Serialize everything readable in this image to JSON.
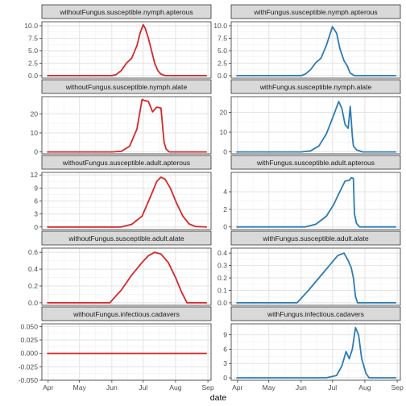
{
  "chart_data": [
    {
      "type": "line",
      "title": "withoutFungus.susceptible.nymph.apterous",
      "color": "#d62728",
      "ylim": [
        -0.5,
        10.8
      ],
      "yticks": [
        0.0,
        2.5,
        5.0,
        7.5,
        10.0
      ],
      "ytick_labels": [
        "0.0",
        "2.5",
        "5.0",
        "7.5",
        "10.0"
      ],
      "x": [
        "2024-03-31",
        "2024-06-01",
        "2024-06-05",
        "2024-06-10",
        "2024-06-15",
        "2024-06-20",
        "2024-06-25",
        "2024-06-28",
        "2024-07-01",
        "2024-07-03",
        "2024-07-06",
        "2024-07-09",
        "2024-07-12",
        "2024-07-15",
        "2024-07-18",
        "2024-07-22",
        "2024-08-01",
        "2024-08-31"
      ],
      "y": [
        0,
        0,
        0.2,
        1,
        2.5,
        3.5,
        6,
        8.5,
        10.2,
        9.5,
        7.5,
        5,
        2.5,
        1,
        0.3,
        0,
        0,
        0
      ]
    },
    {
      "type": "line",
      "title": "withFungus.susceptible.nymph.apterous",
      "color": "#2c7bb6",
      "ylim": [
        -0.5,
        10.8
      ],
      "yticks": [
        0.0,
        2.5,
        5.0,
        7.5,
        10.0
      ],
      "ytick_labels": [
        "0.0",
        "2.5",
        "5.0",
        "7.5",
        "10.0"
      ],
      "x": [
        "2024-03-31",
        "2024-06-01",
        "2024-06-05",
        "2024-06-10",
        "2024-06-15",
        "2024-06-20",
        "2024-06-25",
        "2024-07-01",
        "2024-07-05",
        "2024-07-08",
        "2024-07-12",
        "2024-07-15",
        "2024-07-18",
        "2024-07-22",
        "2024-08-31"
      ],
      "y": [
        0,
        0,
        0.3,
        1.2,
        2.6,
        3.5,
        6,
        9.8,
        8.5,
        5.5,
        3,
        2,
        0.5,
        0,
        0
      ]
    },
    {
      "type": "line",
      "title": "withoutFungus.susceptible.nymph.alate",
      "color": "#d62728",
      "ylim": [
        -1,
        29
      ],
      "yticks": [
        0,
        10,
        20
      ],
      "ytick_labels": [
        "0",
        "10",
        "20"
      ],
      "x": [
        "2024-03-31",
        "2024-06-01",
        "2024-06-10",
        "2024-06-18",
        "2024-06-25",
        "2024-06-30",
        "2024-07-02",
        "2024-07-06",
        "2024-07-10",
        "2024-07-14",
        "2024-07-18",
        "2024-07-21",
        "2024-07-23",
        "2024-07-26",
        "2024-08-05",
        "2024-08-31"
      ],
      "y": [
        0,
        0,
        0.3,
        3,
        12,
        27.5,
        27,
        26.5,
        21,
        23.5,
        23,
        5,
        1.5,
        0,
        0,
        0
      ]
    },
    {
      "type": "line",
      "title": "withFungus.susceptible.nymph.alate",
      "color": "#2c7bb6",
      "ylim": [
        -1,
        28
      ],
      "yticks": [
        0,
        10,
        20
      ],
      "ytick_labels": [
        "0",
        "10",
        "20"
      ],
      "x": [
        "2024-03-31",
        "2024-06-01",
        "2024-06-10",
        "2024-06-18",
        "2024-06-25",
        "2024-07-01",
        "2024-07-07",
        "2024-07-10",
        "2024-07-13",
        "2024-07-16",
        "2024-07-18",
        "2024-07-20",
        "2024-07-21",
        "2024-07-24",
        "2024-07-30",
        "2024-08-31"
      ],
      "y": [
        0,
        0,
        0.5,
        3,
        9,
        17,
        25.5,
        22,
        14,
        12,
        23,
        8,
        3,
        1,
        0,
        0
      ]
    },
    {
      "type": "line",
      "title": "withoutFungus.susceptible.adult.apterous",
      "color": "#d62728",
      "ylim": [
        -0.6,
        12.6
      ],
      "yticks": [
        0,
        3,
        6,
        9,
        12
      ],
      "ytick_labels": [
        "0",
        "3",
        "6",
        "9",
        "12"
      ],
      "x": [
        "2024-03-31",
        "2024-06-10",
        "2024-06-20",
        "2024-06-30",
        "2024-07-08",
        "2024-07-14",
        "2024-07-18",
        "2024-07-22",
        "2024-07-27",
        "2024-08-02",
        "2024-08-08",
        "2024-08-14",
        "2024-08-20",
        "2024-08-31"
      ],
      "y": [
        0,
        0,
        0.6,
        2.5,
        7,
        10.5,
        11.5,
        11,
        9,
        5.5,
        2.5,
        0.7,
        0.1,
        0
      ]
    },
    {
      "type": "line",
      "title": "withFungus.susceptible.adult.apterous",
      "color": "#2c7bb6",
      "ylim": [
        -0.3,
        6.2
      ],
      "yticks": [
        0,
        2,
        4
      ],
      "ytick_labels": [
        "0",
        "2",
        "4"
      ],
      "x": [
        "2024-03-31",
        "2024-06-05",
        "2024-06-15",
        "2024-06-25",
        "2024-07-02",
        "2024-07-08",
        "2024-07-13",
        "2024-07-17",
        "2024-07-19",
        "2024-07-21",
        "2024-07-22",
        "2024-07-24",
        "2024-07-27",
        "2024-08-31"
      ],
      "y": [
        0,
        0,
        0.3,
        1.2,
        2.5,
        4,
        5.2,
        5.3,
        5.6,
        5.5,
        1.5,
        0.4,
        0,
        0
      ]
    },
    {
      "type": "line",
      "title": "withoutFungus.susceptible.adult.alate",
      "color": "#d62728",
      "ylim": [
        -0.03,
        0.65
      ],
      "yticks": [
        0.0,
        0.2,
        0.4,
        0.6
      ],
      "ytick_labels": [
        "0.0",
        "0.2",
        "0.4",
        "0.6"
      ],
      "x": [
        "2024-03-31",
        "2024-05-30",
        "2024-06-10",
        "2024-06-20",
        "2024-06-30",
        "2024-07-06",
        "2024-07-12",
        "2024-07-18",
        "2024-07-25",
        "2024-08-01",
        "2024-08-07",
        "2024-08-12",
        "2024-08-31"
      ],
      "y": [
        0,
        0,
        0.15,
        0.33,
        0.48,
        0.56,
        0.6,
        0.58,
        0.48,
        0.3,
        0.12,
        0,
        0
      ]
    },
    {
      "type": "line",
      "title": "withFungus.susceptible.adult.alate",
      "color": "#2c7bb6",
      "ylim": [
        -0.02,
        0.44
      ],
      "yticks": [
        0.0,
        0.1,
        0.2,
        0.3,
        0.4
      ],
      "ytick_labels": [
        "0.0",
        "0.1",
        "0.2",
        "0.3",
        "0.4"
      ],
      "x": [
        "2024-03-31",
        "2024-05-28",
        "2024-06-08",
        "2024-06-18",
        "2024-06-28",
        "2024-07-06",
        "2024-07-12",
        "2024-07-16",
        "2024-07-19",
        "2024-07-21",
        "2024-07-23",
        "2024-07-25",
        "2024-08-31"
      ],
      "y": [
        0,
        0,
        0.1,
        0.2,
        0.3,
        0.38,
        0.4,
        0.34,
        0.28,
        0.2,
        0.05,
        0,
        0
      ]
    },
    {
      "type": "line",
      "title": "withoutFungus.infectious.cadavers",
      "color": "#d62728",
      "ylim": [
        -0.05,
        0.055
      ],
      "yticks": [
        -0.05,
        -0.025,
        0.0,
        0.025,
        0.05
      ],
      "ytick_labels": [
        "-0.050",
        "-0.025",
        "0.000",
        "0.025",
        "0.050"
      ],
      "x": [
        "2024-03-31",
        "2024-08-31"
      ],
      "y": [
        0,
        0
      ]
    },
    {
      "type": "line",
      "title": "withFungus.infectious.cadavers",
      "color": "#2c7bb6",
      "ylim": [
        -0.5,
        11.3
      ],
      "yticks": [
        0,
        3,
        6,
        9
      ],
      "ytick_labels": [
        "0",
        "3",
        "6",
        "9"
      ],
      "x": [
        "2024-03-31",
        "2024-06-25",
        "2024-07-05",
        "2024-07-10",
        "2024-07-14",
        "2024-07-17",
        "2024-07-20",
        "2024-07-23",
        "2024-07-26",
        "2024-07-29",
        "2024-08-02",
        "2024-08-05",
        "2024-08-31"
      ],
      "y": [
        0,
        0,
        0.5,
        2.5,
        5.5,
        4,
        6,
        10.5,
        9,
        4,
        1,
        0,
        0
      ]
    }
  ],
  "x_axis": {
    "title": "date",
    "range": [
      "2024-03-26",
      "2024-09-04"
    ],
    "ticks": [
      "2024-04-01",
      "2024-05-01",
      "2024-06-01",
      "2024-07-01",
      "2024-08-01",
      "2024-09-01"
    ],
    "tick_labels": [
      "Apr",
      "May",
      "Jun",
      "Jul",
      "Aug",
      "Sep"
    ]
  },
  "grid": true
}
